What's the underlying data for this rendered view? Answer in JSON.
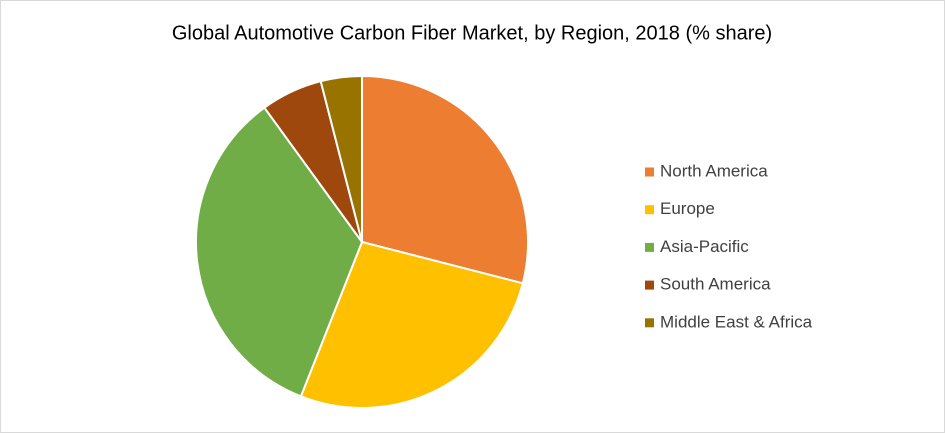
{
  "chart_data": {
    "type": "pie",
    "title": "Global Automotive Carbon Fiber Market, by Region, 2018 (% share)",
    "categories": [
      "North America",
      "Europe",
      "Asia-Pacific",
      "South America",
      "Middle East & Africa"
    ],
    "values": [
      29,
      27,
      34,
      6,
      4
    ],
    "colors": [
      "#ed7d31",
      "#ffc000",
      "#70ad47",
      "#9e480e",
      "#997300"
    ],
    "legend": "right"
  }
}
